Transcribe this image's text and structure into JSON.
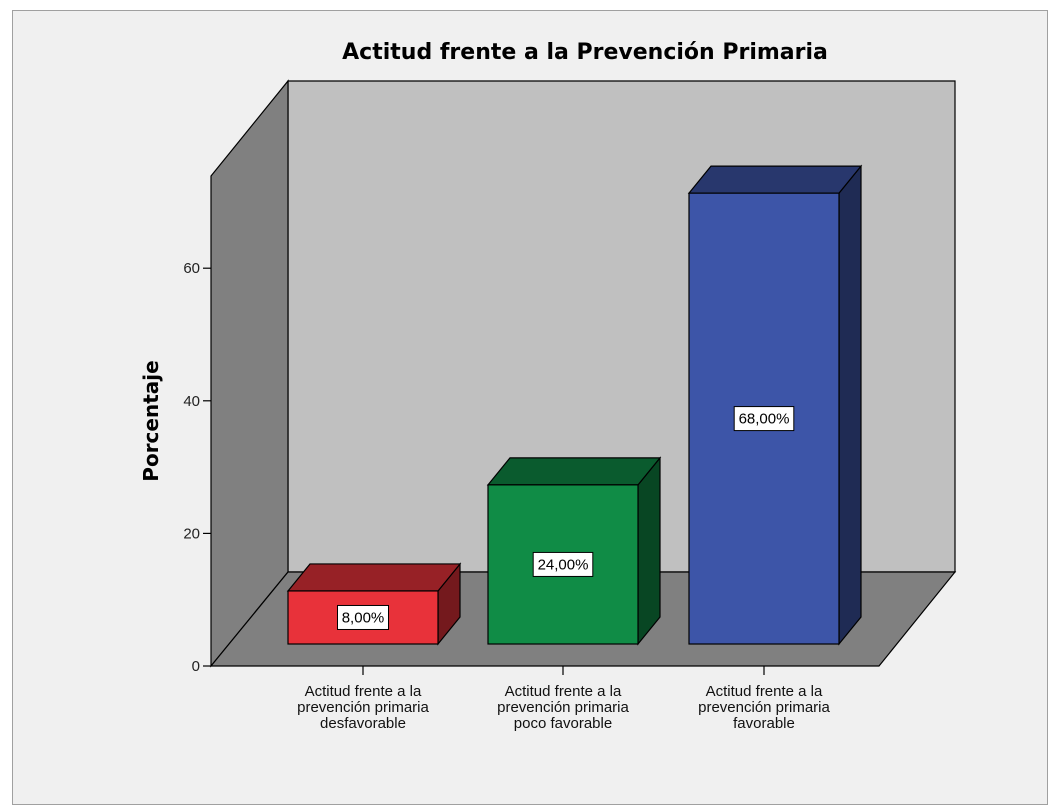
{
  "chart_data": {
    "type": "bar",
    "title": "Actitud frente a la Prevención Primaria",
    "xlabel": "",
    "ylabel": "Porcentaje",
    "categories": [
      [
        "Actitud frente a la",
        "prevención primaria",
        "desfavorable"
      ],
      [
        "Actitud frente a la",
        "prevención primaria",
        "poco favorable"
      ],
      [
        "Actitud frente a la",
        "prevención primaria",
        "favorable"
      ]
    ],
    "values": [
      8,
      24,
      68
    ],
    "data_labels": [
      "8,00%",
      "24,00%",
      "68,00%"
    ],
    "colors": [
      "#e8323a",
      "#108c46",
      "#3d55a8"
    ],
    "yticks": [
      0,
      20,
      40,
      60
    ],
    "ylim": [
      0,
      75
    ],
    "grid": false,
    "legend": "none"
  }
}
